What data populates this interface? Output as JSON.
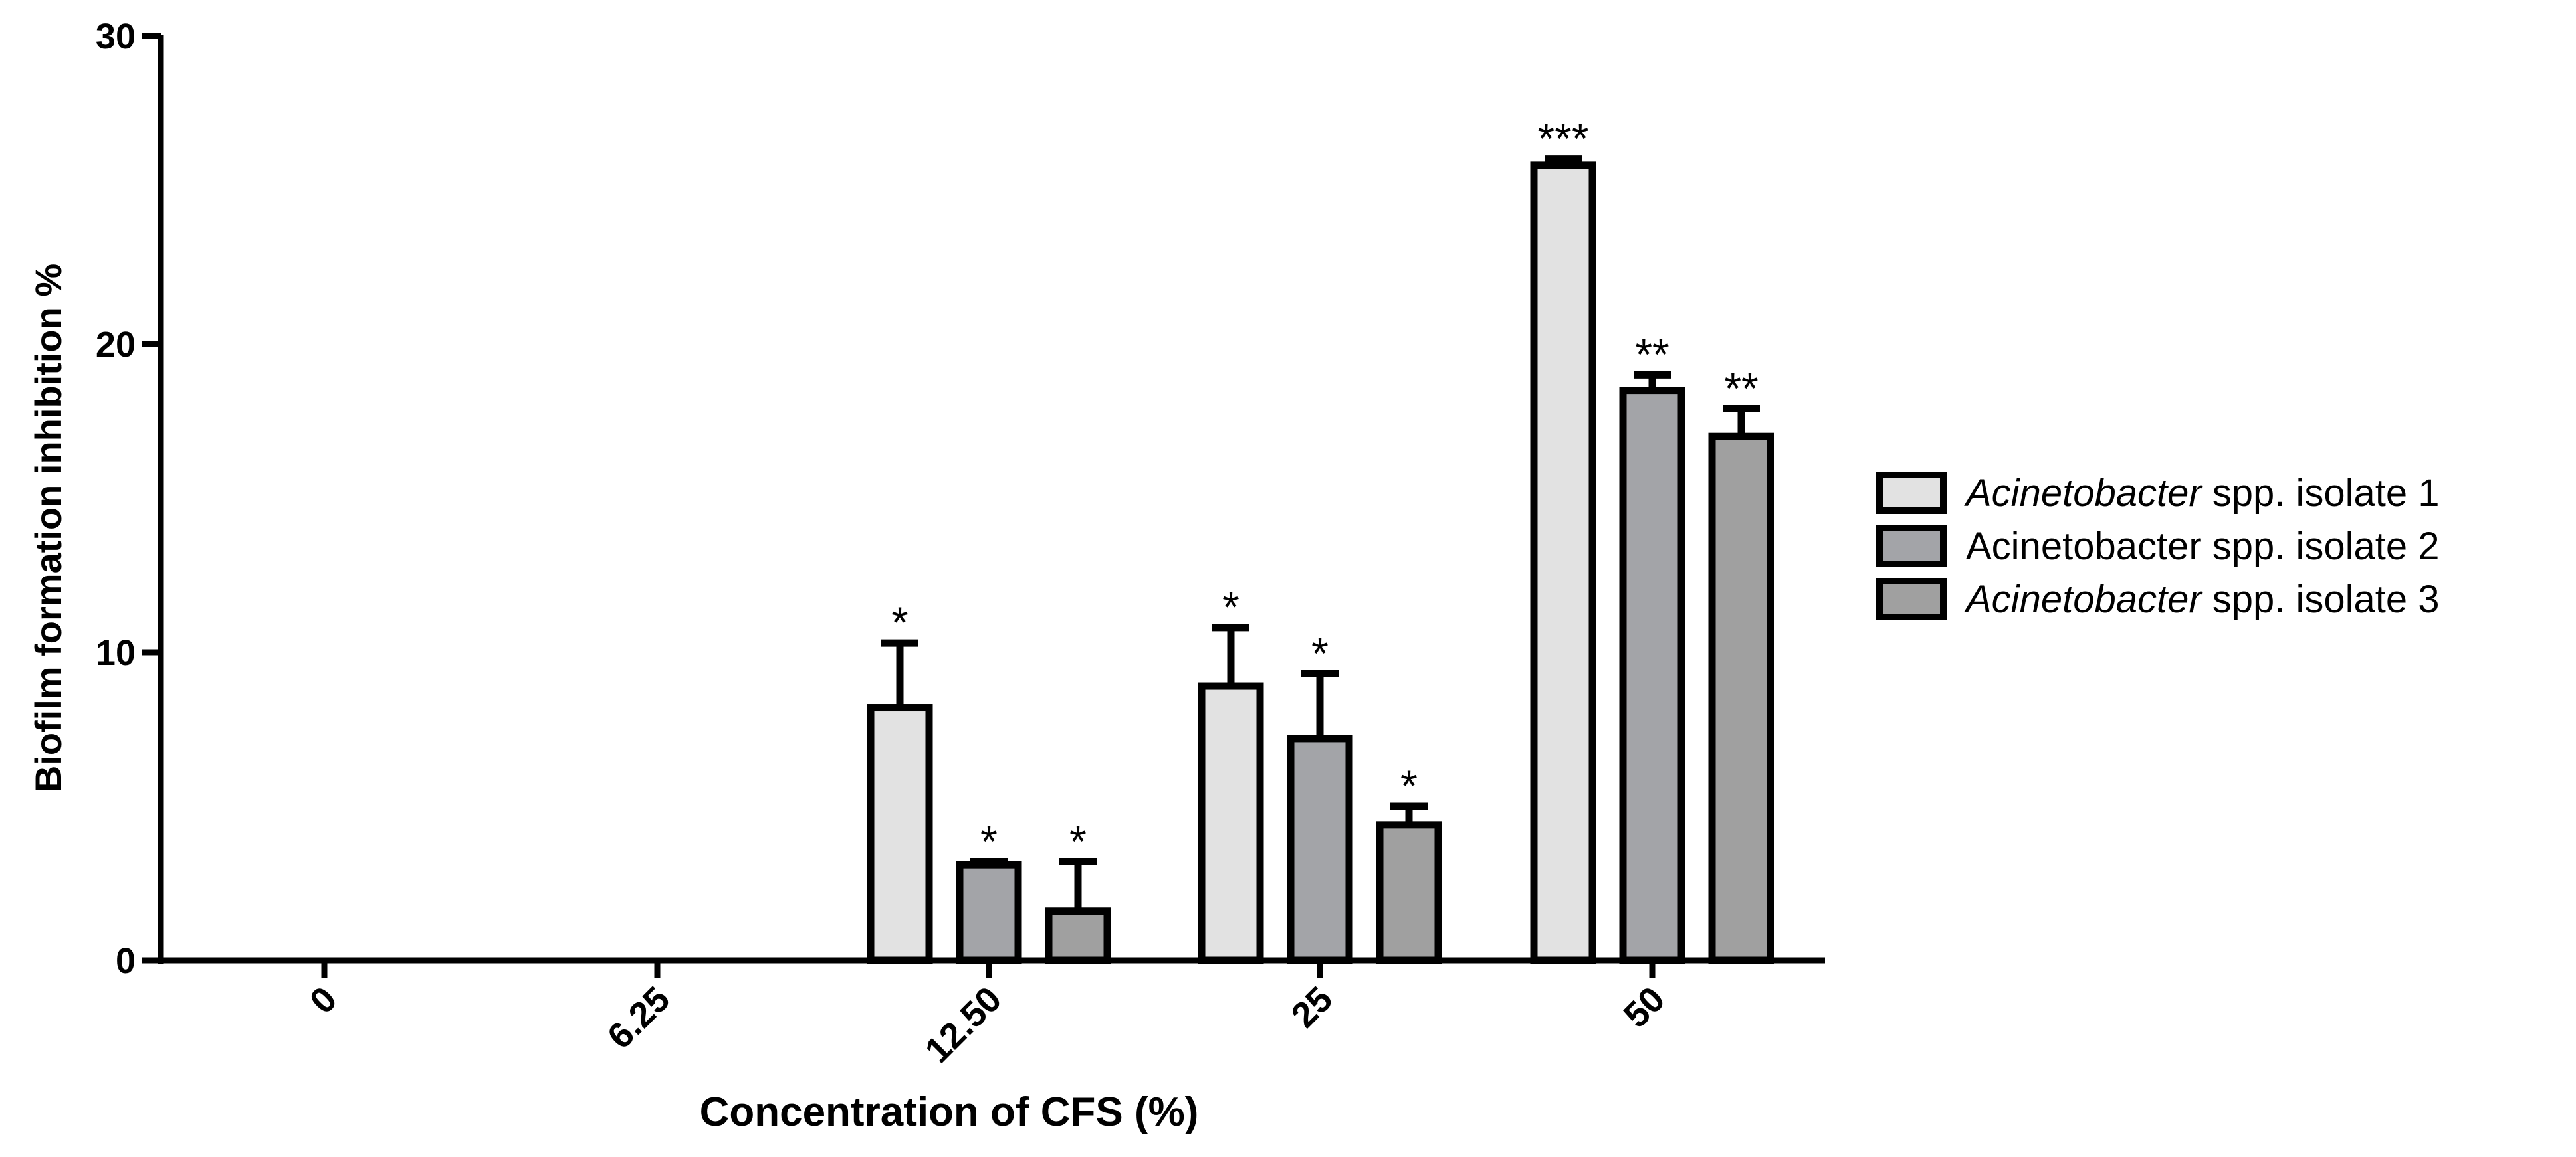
{
  "chart_data": {
    "type": "bar",
    "title": "",
    "xlabel": "Concentration of CFS (%)",
    "ylabel": "Biofilm formation inhibition %",
    "ylim": [
      0,
      30
    ],
    "yticks": [
      "0",
      "10",
      "20",
      "30"
    ],
    "categories": [
      "0",
      "6.25",
      "12.50",
      "25",
      "50"
    ],
    "legend_position": "right",
    "series": [
      {
        "name": "Acinetobacter spp. isolate  1",
        "legend_italic": "Acinetobacter",
        "legend_rest": " spp. isolate  1",
        "color": "#e2e2e2",
        "values": [
          0,
          0,
          8.2,
          8.9,
          25.8
        ],
        "errors": [
          0,
          0,
          2.1,
          1.9,
          0.2
        ],
        "significance": [
          "",
          "",
          "*",
          "*",
          "***"
        ]
      },
      {
        "name": "Acinetobacter spp. isolate  2",
        "legend_italic": "",
        "legend_rest": "Acinetobacter spp. isolate  2",
        "color": "#a3a4a8",
        "values": [
          0,
          0,
          3.1,
          7.2,
          18.5
        ],
        "errors": [
          0,
          0,
          0.1,
          2.1,
          0.5
        ],
        "significance": [
          "",
          "",
          "*",
          "*",
          "**"
        ]
      },
      {
        "name": "Acinetobacter spp. isolate  3",
        "legend_italic": "Acinetobacter",
        "legend_rest": " spp. isolate  3",
        "color": "#a0a0a0",
        "values": [
          0,
          0,
          1.6,
          4.4,
          17.0
        ],
        "errors": [
          0,
          0,
          1.6,
          0.6,
          0.9
        ],
        "significance": [
          "",
          "",
          "*",
          "*",
          "**"
        ]
      }
    ]
  }
}
